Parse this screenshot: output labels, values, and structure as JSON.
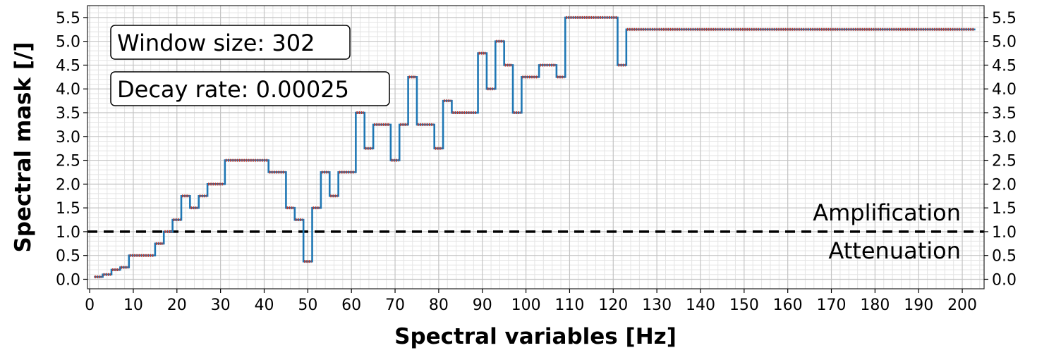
{
  "chart_data": {
    "type": "line",
    "xlabel": "Spectral variables [Hz]",
    "ylabel": "Spectral mask [/]",
    "xlim": [
      -0.5,
      205
    ],
    "ylim": [
      -0.2,
      5.75
    ],
    "x_ticks": [
      0,
      10,
      20,
      30,
      40,
      50,
      60,
      70,
      80,
      90,
      100,
      110,
      120,
      130,
      140,
      150,
      160,
      170,
      180,
      190,
      200
    ],
    "y_ticks": [
      0.0,
      0.5,
      1.0,
      1.5,
      2.0,
      2.5,
      3.0,
      3.5,
      4.0,
      4.5,
      5.0,
      5.5
    ],
    "y_tick_labels": [
      "0.0",
      "0.5",
      "1.0",
      "1.5",
      "2.0",
      "2.5",
      "3.0",
      "3.5",
      "4.0",
      "4.5",
      "5.0",
      "5.5"
    ],
    "grid": true,
    "secondary_y_axis": "right (mirrors left)",
    "series": [
      {
        "style": "step",
        "color": "#1f77b4",
        "steps": [
          [
            1,
            3,
            0.05
          ],
          [
            3,
            5,
            0.1
          ],
          [
            5,
            7,
            0.2
          ],
          [
            7,
            9,
            0.25
          ],
          [
            9,
            15,
            0.5
          ],
          [
            15,
            17,
            0.75
          ],
          [
            17,
            19,
            1.0
          ],
          [
            19,
            21,
            1.25
          ],
          [
            21,
            23,
            1.75
          ],
          [
            23,
            25,
            1.5
          ],
          [
            25,
            27,
            1.75
          ],
          [
            27,
            31,
            2.0
          ],
          [
            31,
            41,
            2.5
          ],
          [
            41,
            45,
            2.25
          ],
          [
            45,
            47,
            1.5
          ],
          [
            47,
            49,
            1.25
          ],
          [
            49,
            51,
            0.375
          ],
          [
            51,
            53,
            1.5
          ],
          [
            53,
            55,
            2.25
          ],
          [
            55,
            57,
            1.75
          ],
          [
            57,
            61,
            2.25
          ],
          [
            61,
            63,
            3.5
          ],
          [
            63,
            65,
            2.75
          ],
          [
            65,
            69,
            3.25
          ],
          [
            69,
            71,
            2.5
          ],
          [
            71,
            73,
            3.25
          ],
          [
            73,
            75,
            4.25
          ],
          [
            75,
            79,
            3.25
          ],
          [
            79,
            81,
            2.75
          ],
          [
            81,
            83,
            3.75
          ],
          [
            83,
            89,
            3.5
          ],
          [
            89,
            91,
            4.75
          ],
          [
            91,
            93,
            4.0
          ],
          [
            93,
            95,
            5.0
          ],
          [
            95,
            97,
            4.5
          ],
          [
            97,
            99,
            3.5
          ],
          [
            99,
            103,
            4.25
          ],
          [
            103,
            107,
            4.5
          ],
          [
            107,
            109,
            4.25
          ],
          [
            109,
            121,
            5.5
          ],
          [
            121,
            123,
            4.5
          ],
          [
            123,
            203,
            5.25
          ]
        ]
      }
    ],
    "sample_marker_color": "#c0392b",
    "reference_line": {
      "y": 1.0,
      "style": "dashed",
      "color": "#000000"
    },
    "annotations": {
      "window": "Window size: 302",
      "decay": "Decay rate: 0.00025",
      "above": "Amplification",
      "below": "Attenuation"
    }
  }
}
